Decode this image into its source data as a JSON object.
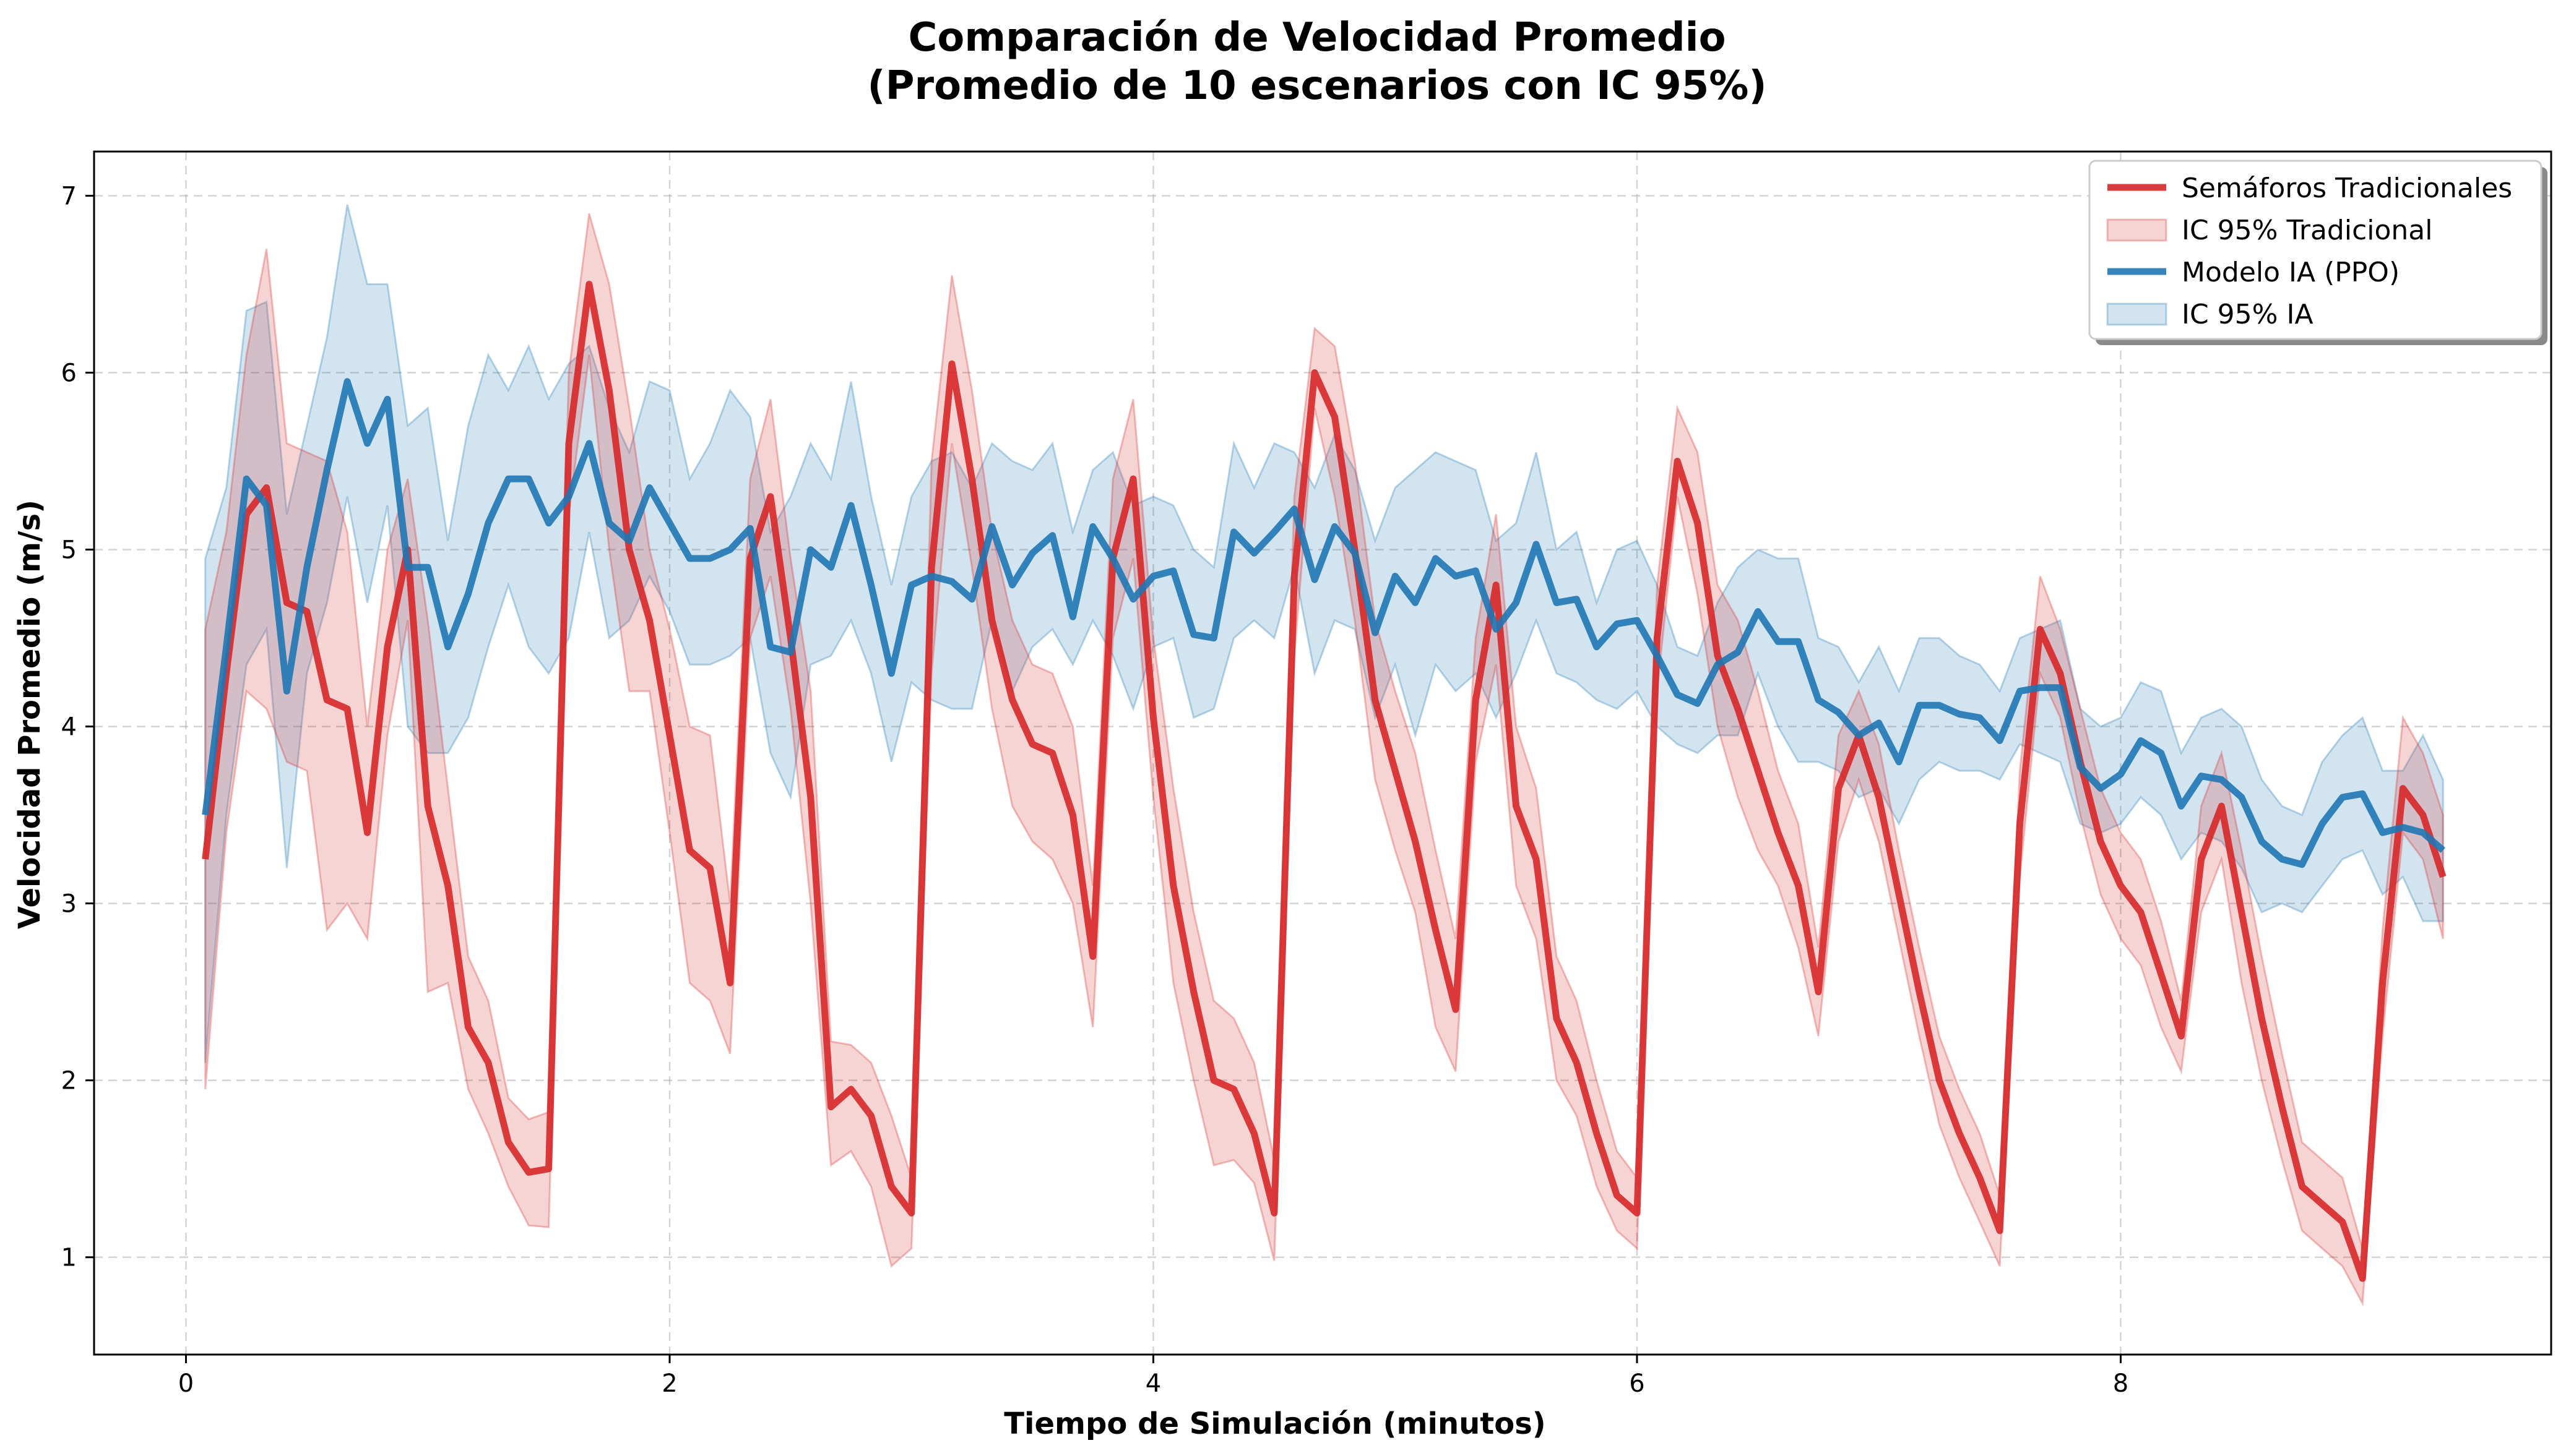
{
  "chart_data": {
    "type": "line",
    "title": "Comparación de Velocidad Promedio",
    "subtitle": "(Promedio de 10 escenarios con IC 95%)",
    "xlabel": "Tiempo de Simulación (minutos)",
    "ylabel": "Velocidad Promedio (m/s)",
    "xlim": [
      -0.38,
      9.78
    ],
    "ylim": [
      0.45,
      7.25
    ],
    "xticks": [
      0,
      2,
      4,
      6,
      8
    ],
    "yticks": [
      1,
      2,
      3,
      4,
      5,
      6,
      7
    ],
    "grid": true,
    "legend_position": "upper right",
    "x": [
      0.08,
      0.167,
      0.25,
      0.333,
      0.417,
      0.5,
      0.583,
      0.667,
      0.75,
      0.833,
      0.917,
      1.0,
      1.083,
      1.167,
      1.25,
      1.333,
      1.417,
      1.5,
      1.583,
      1.667,
      1.75,
      1.833,
      1.917,
      2.0,
      2.083,
      2.167,
      2.25,
      2.333,
      2.417,
      2.5,
      2.583,
      2.667,
      2.75,
      2.833,
      2.917,
      3.0,
      3.083,
      3.167,
      3.25,
      3.333,
      3.417,
      3.5,
      3.583,
      3.667,
      3.75,
      3.833,
      3.917,
      4.0,
      4.083,
      4.167,
      4.25,
      4.333,
      4.417,
      4.5,
      4.583,
      4.667,
      4.75,
      4.833,
      4.917,
      5.0,
      5.083,
      5.167,
      5.25,
      5.333,
      5.417,
      5.5,
      5.583,
      5.667,
      5.75,
      5.833,
      5.917,
      6.0,
      6.083,
      6.167,
      6.25,
      6.333,
      6.417,
      6.5,
      6.583,
      6.667,
      6.75,
      6.833,
      6.917,
      7.0,
      7.083,
      7.167,
      7.25,
      7.333,
      7.417,
      7.5,
      7.583,
      7.667,
      7.75,
      7.833,
      7.917,
      8.0,
      8.083,
      8.167,
      8.25,
      8.333,
      8.417,
      8.5,
      8.583,
      8.667,
      8.75,
      8.833,
      8.917,
      9.0,
      9.083,
      9.167,
      9.25,
      9.333
    ],
    "series": [
      {
        "name": "Semáforos Tradicionales",
        "ci_label": "IC 95% Tradicional",
        "color": "#d62728",
        "values": [
          3.25,
          4.3,
          5.2,
          5.35,
          4.7,
          4.65,
          4.15,
          4.1,
          3.4,
          4.45,
          5.0,
          3.55,
          3.1,
          2.3,
          2.1,
          1.65,
          1.48,
          1.5,
          5.6,
          6.5,
          5.9,
          5.0,
          4.6,
          3.95,
          3.3,
          3.2,
          2.55,
          4.95,
          5.3,
          4.5,
          3.6,
          1.85,
          1.95,
          1.8,
          1.4,
          1.25,
          4.9,
          6.05,
          5.4,
          4.6,
          4.15,
          3.9,
          3.85,
          3.5,
          2.7,
          4.95,
          5.4,
          4.05,
          3.1,
          2.5,
          2.0,
          1.95,
          1.7,
          1.25,
          4.85,
          6.0,
          5.75,
          5.0,
          4.15,
          3.75,
          3.35,
          2.85,
          2.4,
          4.15,
          4.8,
          3.55,
          3.25,
          2.35,
          2.1,
          1.7,
          1.35,
          1.25,
          4.5,
          5.5,
          5.15,
          4.4,
          4.1,
          3.75,
          3.4,
          3.1,
          2.5,
          3.65,
          3.95,
          3.6,
          3.05,
          2.5,
          2.0,
          1.7,
          1.45,
          1.15,
          3.45,
          4.55,
          4.3,
          3.8,
          3.35,
          3.1,
          2.95,
          2.6,
          2.25,
          3.25,
          3.55,
          2.95,
          2.35,
          1.85,
          1.4,
          1.3,
          1.2,
          0.88,
          2.55,
          3.65,
          3.5,
          3.15
        ],
        "ci_lower": [
          1.95,
          3.4,
          4.2,
          4.1,
          3.8,
          3.75,
          2.85,
          3.0,
          2.8,
          3.95,
          4.6,
          2.5,
          2.55,
          1.95,
          1.7,
          1.4,
          1.18,
          1.17,
          5.2,
          6.1,
          5.0,
          4.2,
          4.2,
          3.4,
          2.55,
          2.45,
          2.15,
          4.5,
          4.85,
          4.1,
          3.0,
          1.52,
          1.6,
          1.4,
          0.95,
          1.05,
          4.3,
          5.6,
          4.9,
          4.1,
          3.55,
          3.35,
          3.25,
          3.0,
          2.3,
          4.5,
          4.95,
          3.6,
          2.55,
          2.0,
          1.52,
          1.55,
          1.42,
          0.98,
          4.4,
          5.8,
          5.3,
          4.6,
          3.7,
          3.3,
          2.95,
          2.3,
          2.05,
          3.8,
          4.35,
          3.1,
          2.8,
          2.0,
          1.8,
          1.4,
          1.15,
          1.05,
          4.2,
          5.3,
          4.75,
          4.0,
          3.6,
          3.3,
          3.1,
          2.75,
          2.25,
          3.35,
          3.7,
          3.35,
          2.8,
          2.25,
          1.75,
          1.45,
          1.2,
          0.95,
          3.15,
          4.3,
          4.05,
          3.5,
          3.05,
          2.8,
          2.65,
          2.3,
          2.05,
          2.95,
          3.25,
          2.55,
          2.0,
          1.55,
          1.15,
          1.05,
          0.95,
          0.74,
          2.25,
          3.4,
          3.25,
          2.8
        ],
        "ci_upper": [
          4.55,
          5.1,
          6.1,
          6.7,
          5.6,
          5.55,
          5.5,
          5.1,
          4.0,
          5.0,
          5.4,
          4.6,
          3.65,
          2.7,
          2.45,
          1.9,
          1.78,
          1.82,
          6.0,
          6.9,
          6.5,
          5.8,
          5.0,
          4.55,
          4.0,
          3.95,
          3.0,
          5.4,
          5.85,
          4.95,
          4.2,
          2.22,
          2.2,
          2.1,
          1.8,
          1.45,
          5.5,
          6.55,
          5.9,
          5.1,
          4.6,
          4.35,
          4.3,
          4.0,
          3.1,
          5.4,
          5.85,
          4.5,
          3.65,
          2.95,
          2.45,
          2.35,
          2.1,
          1.55,
          5.3,
          6.25,
          6.15,
          5.5,
          4.6,
          4.2,
          3.85,
          3.3,
          2.8,
          4.5,
          5.2,
          4.0,
          3.65,
          2.7,
          2.45,
          2.0,
          1.6,
          1.45,
          4.8,
          5.8,
          5.55,
          4.8,
          4.6,
          4.2,
          3.75,
          3.45,
          2.75,
          3.95,
          4.2,
          3.9,
          3.3,
          2.75,
          2.25,
          1.95,
          1.7,
          1.35,
          3.75,
          4.85,
          4.55,
          4.1,
          3.65,
          3.4,
          3.25,
          2.9,
          2.45,
          3.55,
          3.85,
          3.3,
          2.7,
          2.15,
          1.65,
          1.55,
          1.45,
          1.05,
          2.85,
          4.05,
          3.85,
          3.5
        ]
      },
      {
        "name": "Modelo IA (PPO)",
        "ci_label": "IC 95% IA",
        "color": "#1f77b4",
        "values": [
          3.5,
          4.45,
          5.4,
          5.25,
          4.2,
          4.9,
          5.45,
          5.95,
          5.6,
          5.85,
          4.9,
          4.9,
          4.45,
          4.75,
          5.15,
          5.4,
          5.4,
          5.15,
          5.3,
          5.6,
          5.15,
          5.05,
          5.35,
          5.15,
          4.95,
          4.95,
          5.0,
          5.12,
          4.45,
          4.42,
          5.0,
          4.9,
          5.25,
          4.8,
          4.3,
          4.8,
          4.85,
          4.82,
          4.72,
          5.13,
          4.8,
          4.98,
          5.08,
          4.62,
          5.13,
          4.95,
          4.72,
          4.85,
          4.88,
          4.52,
          4.5,
          5.1,
          4.98,
          5.1,
          5.23,
          4.83,
          5.13,
          4.98,
          4.53,
          4.85,
          4.7,
          4.95,
          4.85,
          4.88,
          4.55,
          4.7,
          5.03,
          4.7,
          4.72,
          4.45,
          4.58,
          4.6,
          4.4,
          4.18,
          4.13,
          4.35,
          4.42,
          4.65,
          4.48,
          4.48,
          4.15,
          4.08,
          3.95,
          4.02,
          3.8,
          4.12,
          4.12,
          4.07,
          4.05,
          3.92,
          4.2,
          4.22,
          4.22,
          3.77,
          3.65,
          3.73,
          3.92,
          3.85,
          3.55,
          3.72,
          3.7,
          3.6,
          3.35,
          3.25,
          3.22,
          3.45,
          3.6,
          3.62,
          3.4,
          3.43,
          3.4,
          3.3
        ],
        "ci_lower": [
          2.1,
          3.5,
          4.35,
          4.55,
          3.2,
          4.3,
          4.7,
          5.3,
          4.7,
          5.25,
          4.0,
          3.85,
          3.85,
          4.05,
          4.45,
          4.8,
          4.45,
          4.3,
          4.5,
          5.1,
          4.5,
          4.6,
          4.85,
          4.65,
          4.35,
          4.35,
          4.4,
          4.5,
          3.85,
          3.6,
          4.35,
          4.4,
          4.6,
          4.3,
          3.8,
          4.25,
          4.15,
          4.1,
          4.1,
          4.6,
          4.2,
          4.45,
          4.55,
          4.35,
          4.6,
          4.4,
          4.1,
          4.45,
          4.5,
          4.05,
          4.1,
          4.5,
          4.6,
          4.5,
          4.9,
          4.3,
          4.6,
          4.55,
          4.05,
          4.35,
          3.95,
          4.35,
          4.2,
          4.3,
          4.05,
          4.3,
          4.6,
          4.3,
          4.25,
          4.15,
          4.1,
          4.2,
          4.0,
          3.9,
          3.85,
          3.95,
          3.95,
          4.3,
          4.0,
          3.8,
          3.8,
          3.75,
          3.6,
          3.65,
          3.45,
          3.7,
          3.8,
          3.75,
          3.75,
          3.7,
          3.9,
          3.85,
          3.8,
          3.45,
          3.4,
          3.45,
          3.6,
          3.5,
          3.25,
          3.4,
          3.35,
          3.2,
          2.95,
          3.0,
          2.95,
          3.1,
          3.25,
          3.3,
          3.05,
          3.15,
          2.9,
          2.9
        ],
        "ci_upper": [
          4.95,
          5.35,
          6.35,
          6.4,
          5.2,
          5.7,
          6.2,
          6.95,
          6.5,
          6.5,
          5.7,
          5.8,
          5.05,
          5.7,
          6.1,
          5.9,
          6.15,
          5.85,
          6.05,
          6.15,
          5.8,
          5.55,
          5.95,
          5.9,
          5.4,
          5.6,
          5.9,
          5.75,
          5.1,
          5.3,
          5.6,
          5.4,
          5.95,
          5.3,
          4.8,
          5.3,
          5.5,
          5.55,
          5.35,
          5.6,
          5.5,
          5.45,
          5.6,
          5.1,
          5.45,
          5.55,
          5.25,
          5.3,
          5.25,
          5.0,
          4.9,
          5.6,
          5.35,
          5.6,
          5.55,
          5.35,
          5.65,
          5.45,
          5.05,
          5.35,
          5.45,
          5.55,
          5.5,
          5.45,
          5.05,
          5.15,
          5.55,
          5.0,
          5.1,
          4.7,
          5.0,
          5.05,
          4.8,
          4.45,
          4.4,
          4.7,
          4.9,
          5.0,
          4.95,
          4.95,
          4.5,
          4.45,
          4.25,
          4.45,
          4.2,
          4.5,
          4.5,
          4.4,
          4.35,
          4.2,
          4.5,
          4.55,
          4.6,
          4.1,
          4.0,
          4.05,
          4.25,
          4.2,
          3.85,
          4.05,
          4.1,
          4.0,
          3.7,
          3.55,
          3.5,
          3.8,
          3.95,
          4.05,
          3.75,
          3.75,
          3.95,
          3.7
        ]
      }
    ]
  }
}
